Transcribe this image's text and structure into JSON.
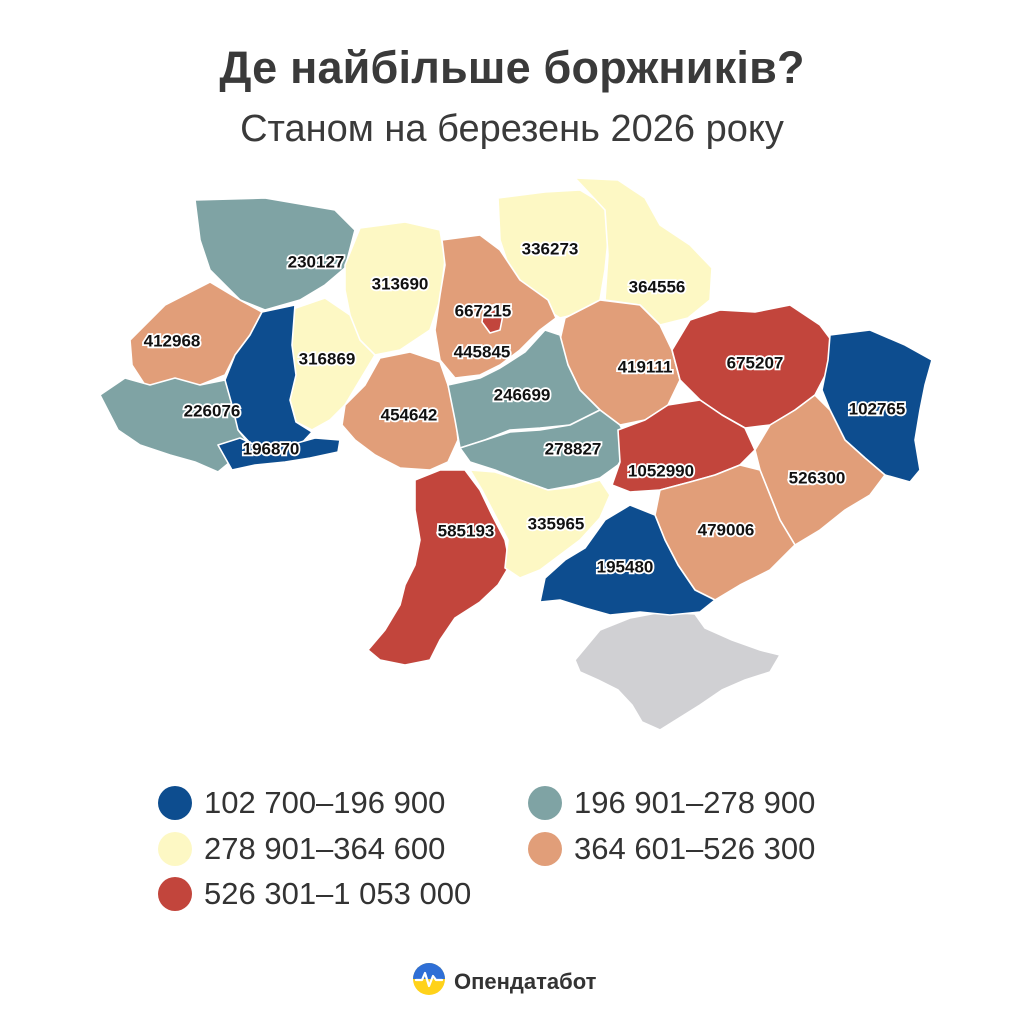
{
  "title": "Де найбільше боржників?",
  "subtitle": "Станом на березень 2026 року",
  "colors": {
    "dark_blue": "#0d4d8f",
    "teal": "#7fa3a4",
    "light_yellow": "#fdf8c4",
    "salmon": "#e19e79",
    "red": "#c2453c",
    "crimea": "#d0d0d3"
  },
  "legend": [
    {
      "label": "102 700–196 900",
      "color": "#0d4d8f"
    },
    {
      "label": "196 901–278 900",
      "color": "#7fa3a4"
    },
    {
      "label": "278 901–364 600",
      "color": "#fdf8c4"
    },
    {
      "label": "364 601–526 300",
      "color": "#e19e79"
    },
    {
      "label": "526 301–1 053 000",
      "color": "#c2453c"
    }
  ],
  "regions": [
    {
      "value": "230127"
    },
    {
      "value": "313690"
    },
    {
      "value": "336273"
    },
    {
      "value": "364556"
    },
    {
      "value": "667215"
    },
    {
      "value": "412968"
    },
    {
      "value": "316869"
    },
    {
      "value": "445845"
    },
    {
      "value": "419111"
    },
    {
      "value": "675207"
    },
    {
      "value": "102765"
    },
    {
      "value": "226076"
    },
    {
      "value": "454642"
    },
    {
      "value": "246699"
    },
    {
      "value": "196870"
    },
    {
      "value": "278827"
    },
    {
      "value": "1052990"
    },
    {
      "value": "526300"
    },
    {
      "value": "585193"
    },
    {
      "value": "335965"
    },
    {
      "value": "479006"
    },
    {
      "value": "195480"
    }
  ],
  "brand": {
    "name": "Опендатабот",
    "icon": "opendatabot-logo-icon"
  }
}
